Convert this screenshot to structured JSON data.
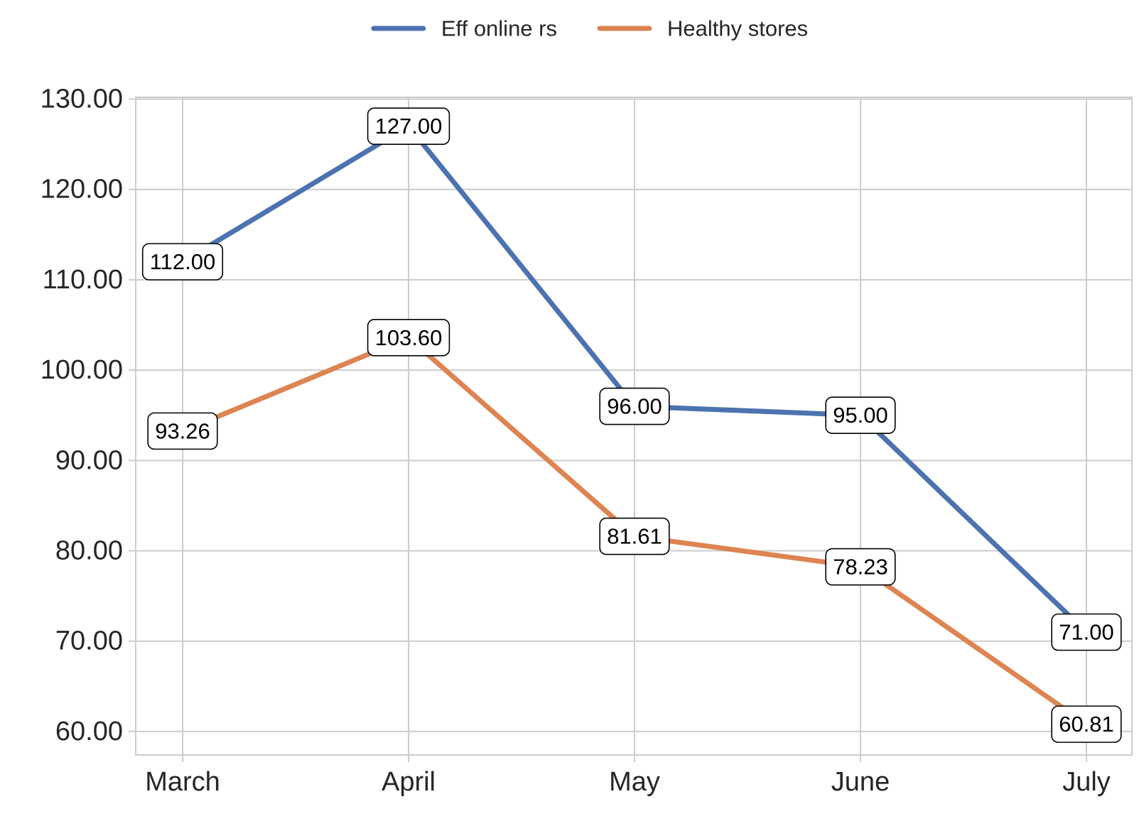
{
  "chart_data": {
    "type": "line",
    "title": "",
    "xlabel": "",
    "ylabel": "",
    "categories": [
      "March",
      "April",
      "May",
      "June",
      "July"
    ],
    "ylim": [
      57.4,
      130.2
    ],
    "yticks": [
      60,
      70,
      80,
      90,
      100,
      110,
      120,
      130
    ],
    "ytick_labels": [
      "60.00",
      "70.00",
      "80.00",
      "90.00",
      "100.00",
      "110.00",
      "120.00",
      "130.00"
    ],
    "grid": true,
    "legend_position": "top-center",
    "series": [
      {
        "name": "Eff online rs",
        "color": "#4C72B0",
        "values": [
          112.0,
          127.0,
          96.0,
          95.0,
          71.0
        ],
        "labels": [
          "112.00",
          "127.00",
          "96.00",
          "95.00",
          "71.00"
        ]
      },
      {
        "name": "Healthy stores",
        "color": "#DD8452",
        "values": [
          93.26,
          103.6,
          81.61,
          78.23,
          60.81
        ],
        "labels": [
          "93.26",
          "103.60",
          "81.61",
          "78.23",
          "60.81"
        ]
      }
    ]
  }
}
